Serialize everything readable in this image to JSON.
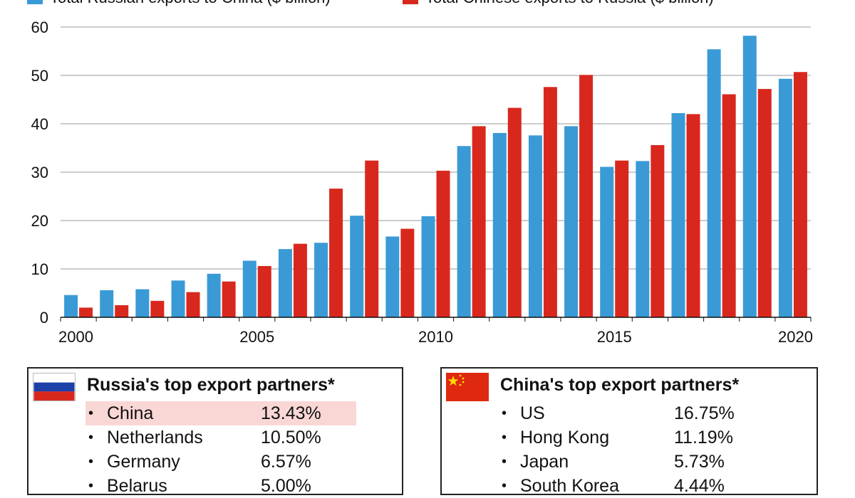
{
  "chart_data": {
    "type": "bar",
    "x": [
      2000,
      2001,
      2002,
      2003,
      2004,
      2005,
      2006,
      2007,
      2008,
      2009,
      2010,
      2011,
      2012,
      2013,
      2014,
      2015,
      2016,
      2017,
      2018,
      2019,
      2020
    ],
    "series": [
      {
        "name": "Total Russian exports to China ($ billion)",
        "color": "#3a9ad6",
        "values": [
          4.6,
          5.6,
          5.8,
          7.6,
          9.0,
          11.7,
          14.1,
          15.4,
          21.0,
          16.7,
          20.9,
          35.4,
          38.1,
          37.6,
          39.5,
          31.1,
          32.3,
          42.2,
          55.4,
          58.2,
          49.3
        ]
      },
      {
        "name": "Total Chinese exports to Russia ($ billion)",
        "color": "#d8281e",
        "values": [
          2.0,
          2.5,
          3.4,
          5.2,
          7.4,
          10.6,
          15.2,
          26.6,
          32.4,
          18.3,
          30.3,
          39.5,
          43.3,
          47.6,
          50.1,
          32.4,
          35.6,
          42.0,
          46.1,
          47.2,
          50.7
        ]
      }
    ],
    "yticks": [
      0,
      10,
      20,
      30,
      40,
      50,
      60
    ],
    "xticks": [
      2000,
      2005,
      2010,
      2015,
      2020
    ],
    "ylim": [
      0,
      60
    ],
    "grid": true,
    "legend": "top-left"
  },
  "panels": {
    "russia": {
      "title": "Russia's top export partners*",
      "flag": "russia-flag",
      "rows": [
        {
          "name": "China",
          "value": "13.43%",
          "highlight": true
        },
        {
          "name": "Netherlands",
          "value": "10.50%"
        },
        {
          "name": "Germany",
          "value": "6.57%"
        },
        {
          "name": "Belarus",
          "value": "5.00%"
        }
      ]
    },
    "china": {
      "title": "China's top export partners*",
      "flag": "china-flag",
      "rows": [
        {
          "name": "US",
          "value": "16.75%"
        },
        {
          "name": "Hong Kong",
          "value": "11.19%"
        },
        {
          "name": "Japan",
          "value": "5.73%"
        },
        {
          "name": "South Korea",
          "value": "4.44%"
        }
      ]
    }
  },
  "bullet": "•"
}
